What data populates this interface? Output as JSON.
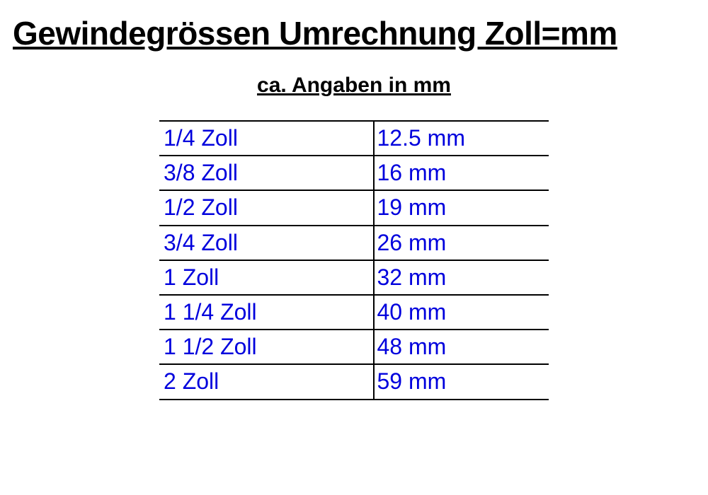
{
  "title": "Gewindegrössen Umrechnung Zoll=mm",
  "subtitle": "ca. Angaben in mm",
  "table": {
    "text_color": "#0000dd",
    "border_color": "#000000",
    "rows": [
      {
        "zoll": "1/4 Zoll",
        "mm": "12.5 mm"
      },
      {
        "zoll": "3/8 Zoll",
        "mm": "16 mm"
      },
      {
        "zoll": "1/2 Zoll",
        "mm": "19 mm"
      },
      {
        "zoll": "3/4 Zoll",
        "mm": "26 mm"
      },
      {
        "zoll": "1 Zoll",
        "mm": "32 mm"
      },
      {
        "zoll": "1 1/4 Zoll",
        "mm": "40 mm"
      },
      {
        "zoll": "1 1/2 Zoll",
        "mm": "48 mm"
      },
      {
        "zoll": "2 Zoll",
        "mm": "59 mm"
      }
    ]
  },
  "styling": {
    "background_color": "#ffffff",
    "title_fontsize": 46,
    "subtitle_fontsize": 30,
    "cell_fontsize": 32,
    "title_color": "#000000",
    "subtitle_color": "#000000"
  }
}
